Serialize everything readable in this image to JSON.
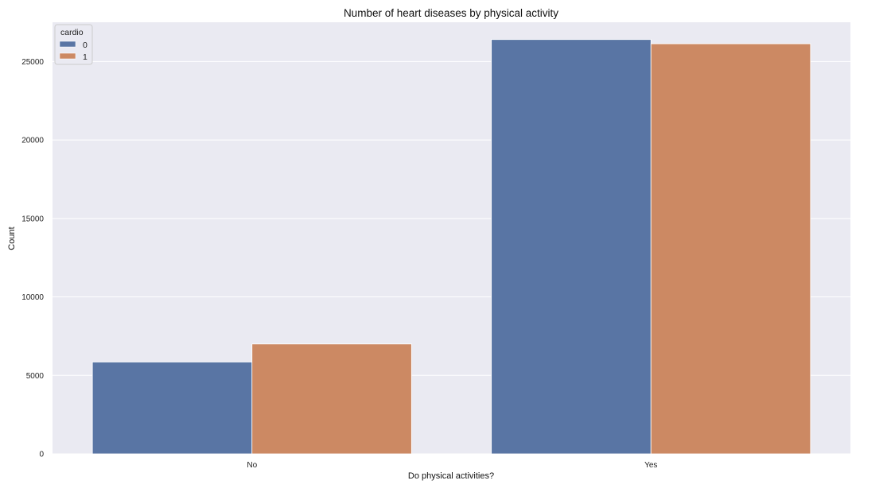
{
  "chart_data": {
    "type": "bar",
    "title": "Number of heart diseases by physical activity",
    "xlabel": "Do physical activities?",
    "ylabel": "Count",
    "categories": [
      "No",
      "Yes"
    ],
    "series": [
      {
        "name": "0",
        "values": [
          5850,
          26400
        ]
      },
      {
        "name": "1",
        "values": [
          7000,
          26130
        ]
      }
    ],
    "ylim": [
      0,
      27500
    ],
    "yticks": [
      "0",
      "5000",
      "10000",
      "15000",
      "20000",
      "25000"
    ],
    "legend": {
      "title": "cardio",
      "placement": "top-left"
    },
    "grid": true
  },
  "colors": {
    "series": [
      "#5975a4",
      "#cc8963"
    ],
    "background": "#eaeaf2",
    "grid": "#ffffff"
  }
}
